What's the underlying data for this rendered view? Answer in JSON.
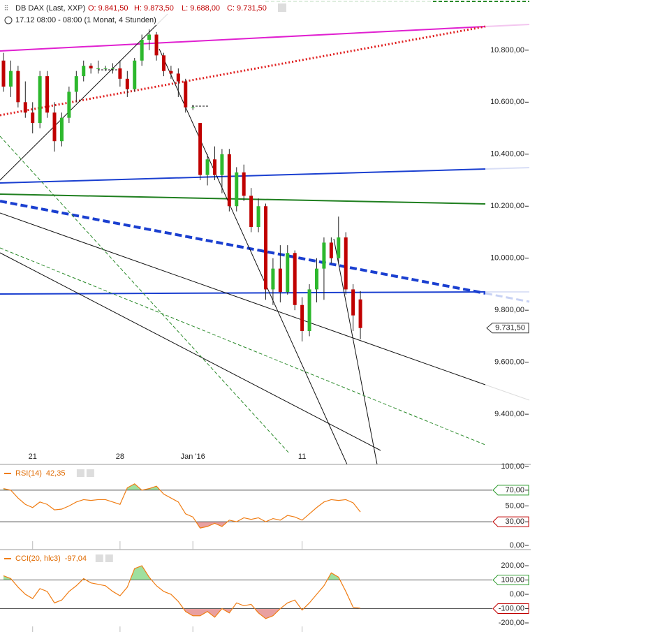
{
  "chart_data": [
    {
      "type": "candlestick",
      "title": "DB DAX (Last, XXP)",
      "subtitle": "17.12 08:00 - 08:00 (1 Monat, 4 Stunden)",
      "ohlc_labels": [
        "O: 9.841,50",
        "H: 9.873,50",
        "L: 9.688,00",
        "C: 9.731,50"
      ],
      "last_label": "9.731,50",
      "categories": [
        null,
        null,
        null,
        null,
        "21",
        null,
        null,
        null,
        null,
        null,
        null,
        null,
        null,
        null,
        null,
        null,
        "28",
        null,
        null,
        null,
        null,
        null,
        null,
        null,
        null,
        null,
        "Jan '16",
        null,
        null,
        null,
        null,
        null,
        null,
        null,
        null,
        null,
        null,
        null,
        null,
        null,
        null,
        "11",
        null,
        null,
        null,
        null,
        null,
        null,
        null,
        null
      ],
      "open": [
        10760,
        10660,
        10720,
        10600,
        10560,
        10520,
        10700,
        10560,
        10450,
        10540,
        10640,
        10700,
        10740,
        10730,
        10730,
        10730,
        10730,
        10690,
        10650,
        10760,
        10840,
        10860,
        10780,
        10720,
        10710,
        10680,
        10580,
        10520,
        10320,
        10380,
        10320,
        10400,
        10200,
        10330,
        10240,
        10120,
        10200,
        9880,
        9960,
        9870,
        10020,
        9820,
        9720,
        9880,
        9960,
        10060,
        10000,
        10080,
        9880,
        9841.5
      ],
      "high": [
        10790,
        10760,
        10740,
        10680,
        10600,
        10720,
        10720,
        10600,
        10560,
        10660,
        10720,
        10760,
        10750,
        10760,
        10740,
        10750,
        10760,
        10720,
        10770,
        10860,
        10880,
        10870,
        10790,
        10740,
        10730,
        10690,
        10590,
        10520,
        10400,
        10430,
        10420,
        10420,
        10350,
        10360,
        10270,
        10230,
        10210,
        10000,
        10050,
        10050,
        10030,
        9850,
        9900,
        10000,
        10080,
        10080,
        10160,
        10100,
        9900,
        9873.5
      ],
      "low": [
        10640,
        10620,
        10580,
        10540,
        10480,
        10500,
        10540,
        10410,
        10430,
        10520,
        10600,
        10680,
        10710,
        10710,
        10720,
        10710,
        10660,
        10620,
        10640,
        10740,
        10800,
        10760,
        10700,
        10690,
        10620,
        10560,
        10570,
        10300,
        10280,
        10300,
        10250,
        10180,
        10180,
        10220,
        10100,
        10100,
        9840,
        9820,
        9830,
        9860,
        9800,
        9680,
        9700,
        9830,
        9840,
        9980,
        9980,
        9860,
        9720,
        9688
      ],
      "close": [
        10660,
        10720,
        10600,
        10560,
        10520,
        10700,
        10560,
        10450,
        10540,
        10640,
        10700,
        10740,
        10730,
        10730,
        10730,
        10730,
        10690,
        10650,
        10760,
        10840,
        10860,
        10780,
        10720,
        10710,
        10680,
        10580,
        10580,
        10320,
        10380,
        10320,
        10400,
        10200,
        10330,
        10240,
        10120,
        10200,
        9880,
        9960,
        9870,
        10020,
        9820,
        9720,
        9880,
        9960,
        10060,
        10000,
        10080,
        9880,
        9780,
        9731.5
      ],
      "up_color": "#2db82d",
      "down_color": "#c00000",
      "ylim": [
        9207,
        10993
      ],
      "yticks": [
        {
          "value": 9400,
          "label": "9.400,00"
        },
        {
          "value": 9600,
          "label": "9.600,00"
        },
        {
          "value": 9800,
          "label": "9.800,00"
        },
        {
          "value": 10000,
          "label": "10.000,00"
        },
        {
          "value": 10200,
          "label": "10.200,00"
        },
        {
          "value": 10400,
          "label": "10.400,00"
        },
        {
          "value": 10600,
          "label": "10.600,00"
        },
        {
          "value": 10800,
          "label": "10.800,00"
        }
      ]
    },
    {
      "type": "line",
      "name": "RSI(14)",
      "value_label": "42,35",
      "color": "#f07d14",
      "values": [
        72,
        70,
        60,
        52,
        48,
        55,
        52,
        45,
        46,
        50,
        55,
        58,
        57,
        58,
        58,
        55,
        52,
        73,
        78,
        70,
        72,
        75,
        65,
        60,
        55,
        40,
        36,
        22,
        24,
        28,
        24,
        32,
        30,
        35,
        33,
        35,
        30,
        34,
        32,
        38,
        36,
        32,
        40,
        48,
        55,
        58,
        57,
        58,
        54,
        42.35
      ],
      "ylim": [
        0,
        100
      ],
      "yticks": [
        {
          "value": 0,
          "label": "0,00"
        },
        {
          "value": 30,
          "label": "30,00"
        },
        {
          "value": 50,
          "label": "50,00"
        },
        {
          "value": 70,
          "label": "70,00"
        },
        {
          "value": 100,
          "label": "100,00"
        }
      ],
      "levels": [
        70,
        30
      ]
    },
    {
      "type": "line",
      "name": "CCI(20, hlc3)",
      "value_label": "-97,04",
      "color": "#f07d14",
      "values": [
        130,
        110,
        50,
        0,
        -30,
        40,
        20,
        -60,
        -40,
        20,
        60,
        110,
        80,
        70,
        60,
        20,
        -10,
        50,
        180,
        200,
        120,
        60,
        20,
        0,
        -50,
        -120,
        -150,
        -150,
        -120,
        -160,
        -100,
        -130,
        -60,
        -80,
        -70,
        -130,
        -170,
        -150,
        -100,
        -60,
        -40,
        -110,
        -60,
        0,
        60,
        150,
        120,
        20,
        -90,
        -97.04
      ],
      "ylim": [
        -239,
        298
      ],
      "yticks": [
        {
          "value": -200,
          "label": "-200,00"
        },
        {
          "value": -100,
          "label": "-100,00"
        },
        {
          "value": 0,
          "label": "0,00"
        },
        {
          "value": 100,
          "label": "100,00"
        },
        {
          "value": 200,
          "label": "200,00"
        }
      ],
      "levels": [
        100,
        -100
      ]
    }
  ]
}
